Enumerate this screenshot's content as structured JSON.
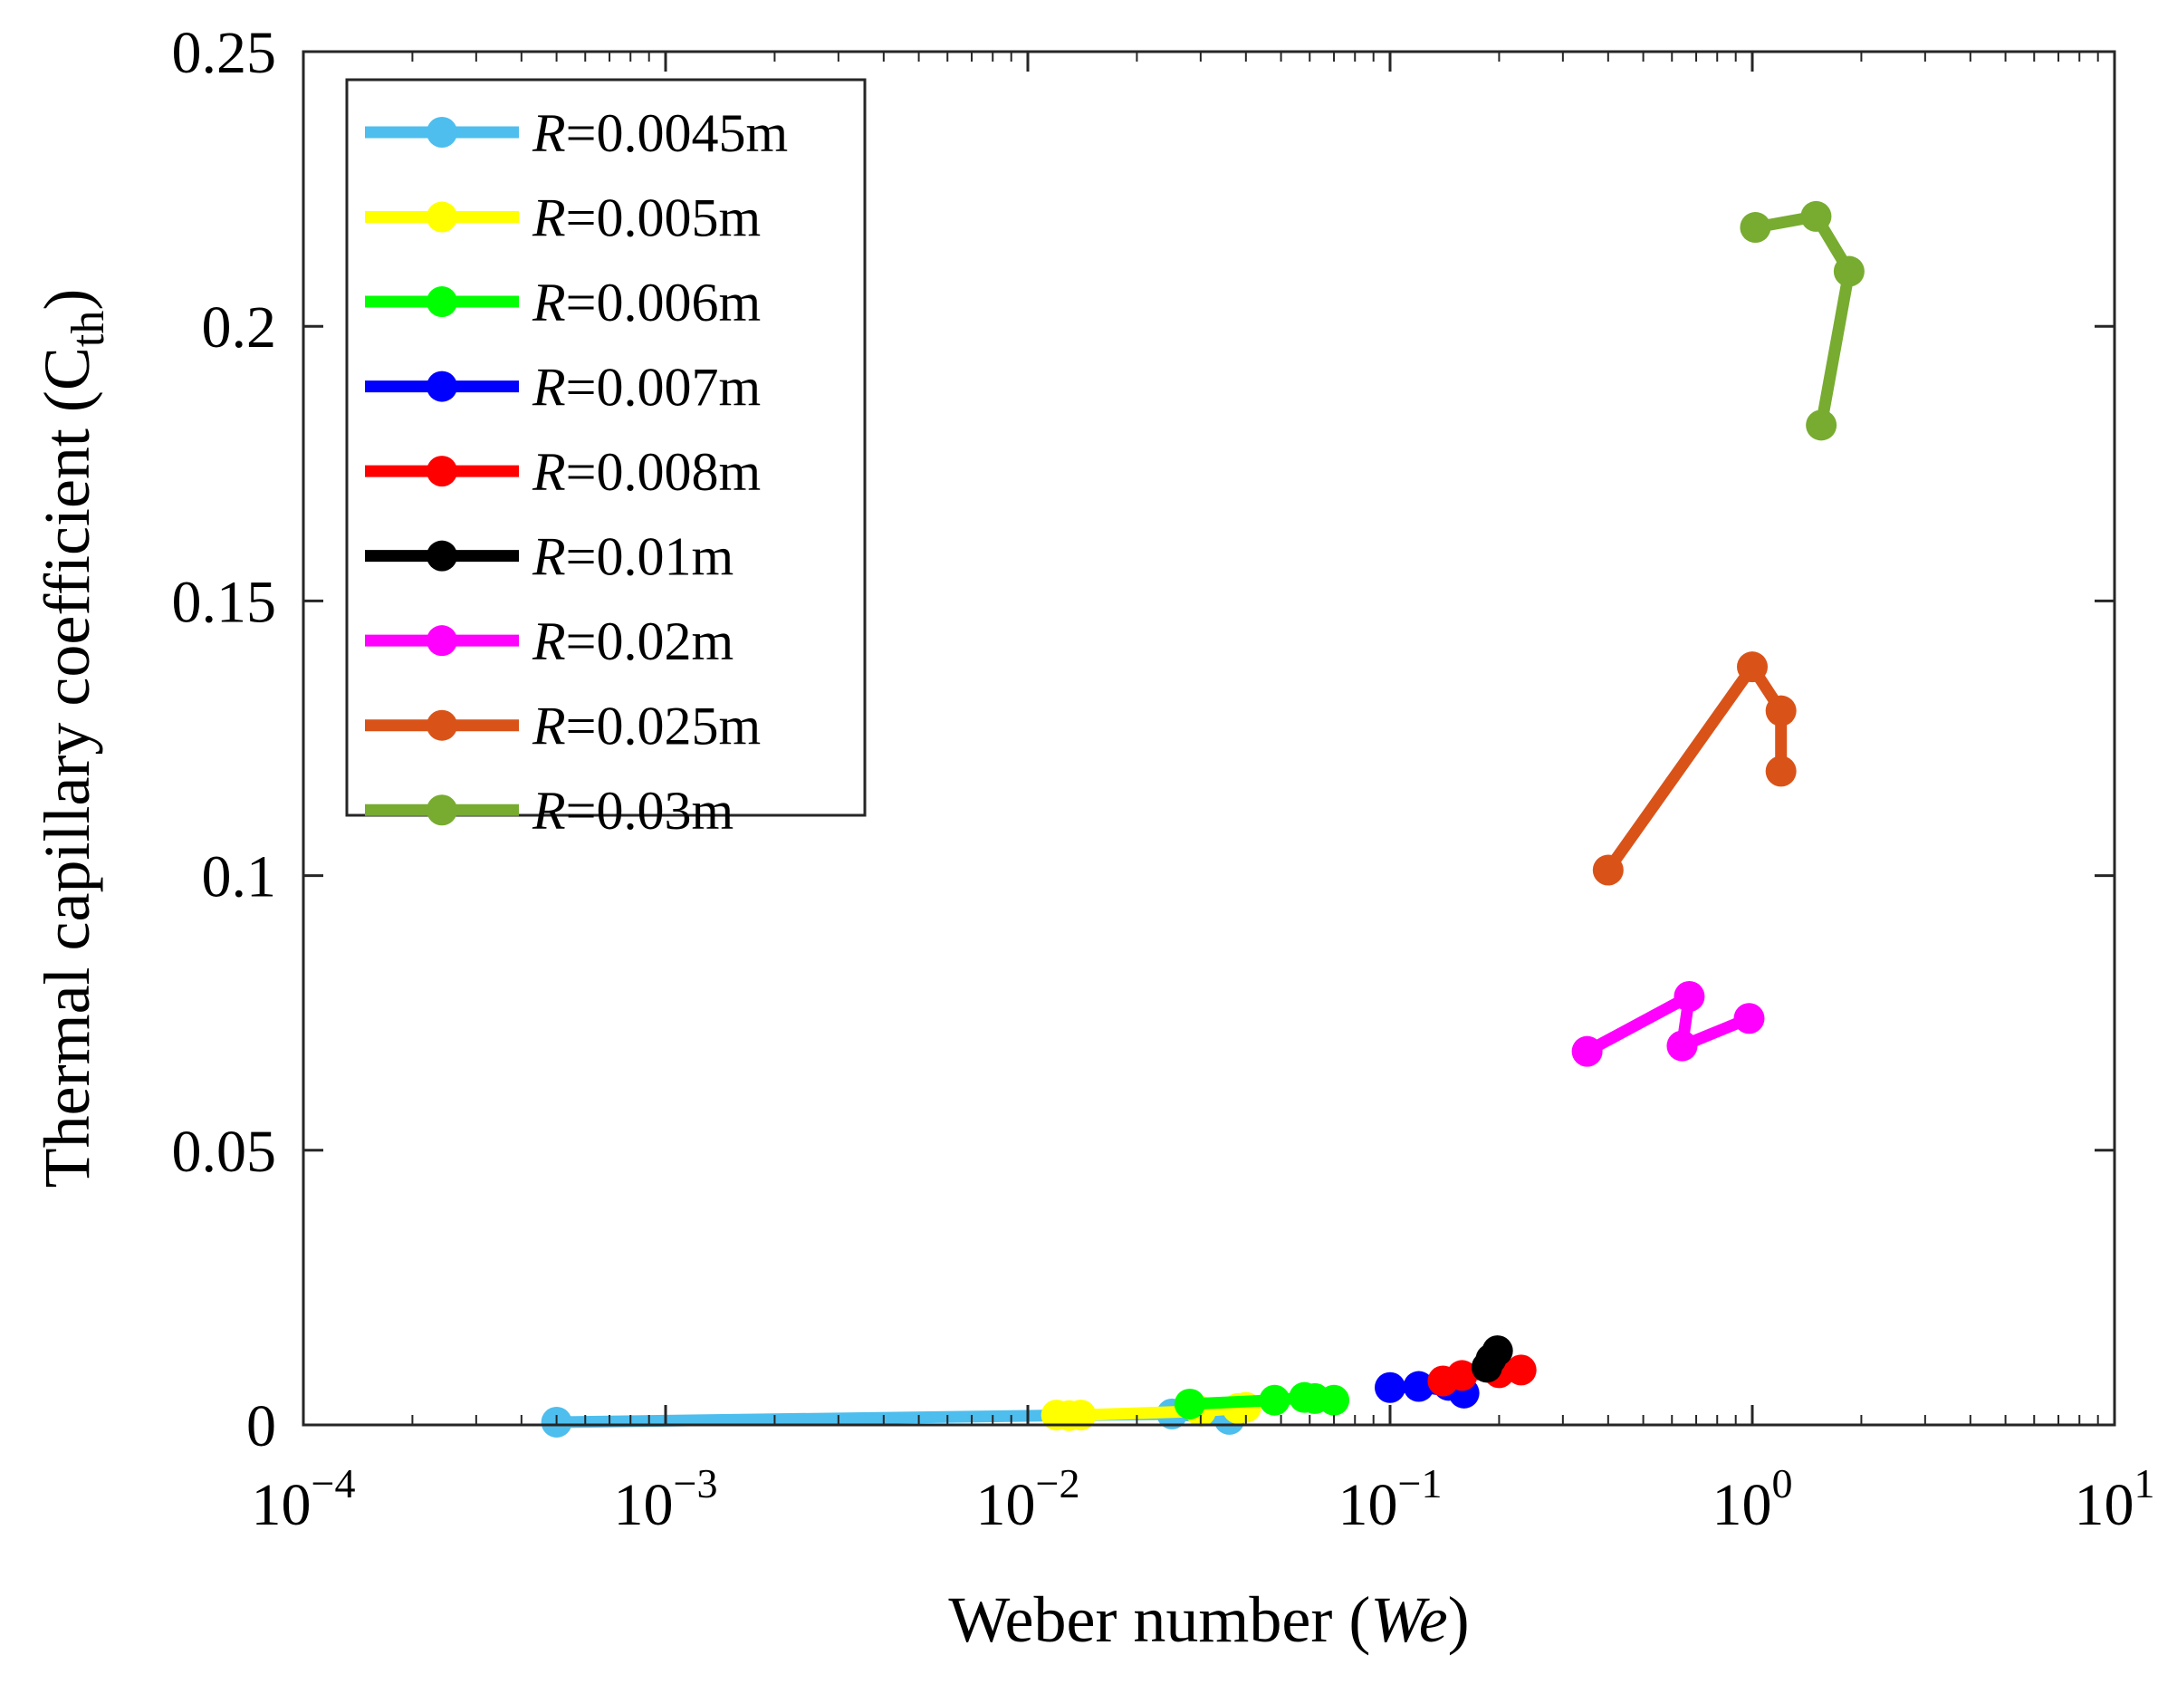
{
  "chart_data": {
    "type": "line",
    "x_scale": "log",
    "xlabel": {
      "text": "Weber number (",
      "var": "We",
      "close": ")"
    },
    "ylabel": {
      "text": "Thermal capillary coefficient (C",
      "sub": "th",
      "close": ")"
    },
    "xlim": [
      0.0001,
      10
    ],
    "ylim": [
      0,
      0.25
    ],
    "x_ticks": [
      {
        "value": 0.0001,
        "base": "10",
        "exp": "−4"
      },
      {
        "value": 0.001,
        "base": "10",
        "exp": "−3"
      },
      {
        "value": 0.01,
        "base": "10",
        "exp": "−2"
      },
      {
        "value": 0.1,
        "base": "10",
        "exp": "−1"
      },
      {
        "value": 1,
        "base": "10",
        "exp": "0"
      },
      {
        "value": 10,
        "base": "10",
        "exp": "1"
      }
    ],
    "y_ticks": [
      {
        "value": 0,
        "label": "0"
      },
      {
        "value": 0.05,
        "label": "0.05"
      },
      {
        "value": 0.1,
        "label": "0.1"
      },
      {
        "value": 0.15,
        "label": "0.15"
      },
      {
        "value": 0.2,
        "label": "0.2"
      },
      {
        "value": 0.25,
        "label": "0.25"
      }
    ],
    "legend_position": "top-left",
    "series": [
      {
        "name": "R=0.0045m",
        "var": "R",
        "rest": "=0.0045m",
        "color": "#4DBEEE",
        "x": [
          0.0005,
          0.025,
          0.036
        ],
        "y": [
          0.0005,
          0.002,
          0.001
        ]
      },
      {
        "name": "R=0.005m",
        "var": "R",
        "rest": "=0.005m",
        "color": "#FFFF00",
        "x": [
          0.012,
          0.013,
          0.014,
          0.03,
          0.038,
          0.04
        ],
        "y": [
          0.0018,
          0.0017,
          0.0018,
          0.0025,
          0.003,
          0.0032
        ]
      },
      {
        "name": "R=0.006m",
        "var": "R",
        "rest": "=0.006m",
        "color": "#00FF00",
        "x": [
          0.028,
          0.048,
          0.058,
          0.062,
          0.07
        ],
        "y": [
          0.0038,
          0.0045,
          0.005,
          0.0048,
          0.0045
        ]
      },
      {
        "name": "R=0.007m",
        "var": "R",
        "rest": "=0.007m",
        "color": "#0000FF",
        "x": [
          0.1,
          0.12,
          0.16,
          0.145
        ],
        "y": [
          0.0068,
          0.007,
          0.0058,
          0.0072
        ]
      },
      {
        "name": "R=0.008m",
        "var": "R",
        "rest": "=0.008m",
        "color": "#FF0000",
        "x": [
          0.14,
          0.158,
          0.2,
          0.23
        ],
        "y": [
          0.008,
          0.009,
          0.0095,
          0.01
        ]
      },
      {
        "name": "R=0.01m",
        "var": "R",
        "rest": "=0.01m",
        "color": "#000000",
        "x": [
          0.185,
          0.19,
          0.198
        ],
        "y": [
          0.0105,
          0.012,
          0.0135
        ]
      },
      {
        "name": "R=0.02m",
        "var": "R",
        "rest": "=0.02m",
        "color": "#FF00FF",
        "x": [
          0.35,
          0.67,
          0.64,
          0.98
        ],
        "y": [
          0.068,
          0.078,
          0.069,
          0.074
        ]
      },
      {
        "name": "R=0.025m",
        "var": "R",
        "rest": "=0.025m",
        "color": "#D95319",
        "x": [
          0.4,
          1.0,
          1.2,
          1.2
        ],
        "y": [
          0.101,
          0.138,
          0.13,
          0.119
        ]
      },
      {
        "name": "R=0.03m",
        "var": "R",
        "rest": "=0.03m",
        "color": "#77AC30",
        "x": [
          1.55,
          1.85,
          1.5,
          1.02
        ],
        "y": [
          0.182,
          0.21,
          0.22,
          0.218
        ]
      }
    ]
  }
}
